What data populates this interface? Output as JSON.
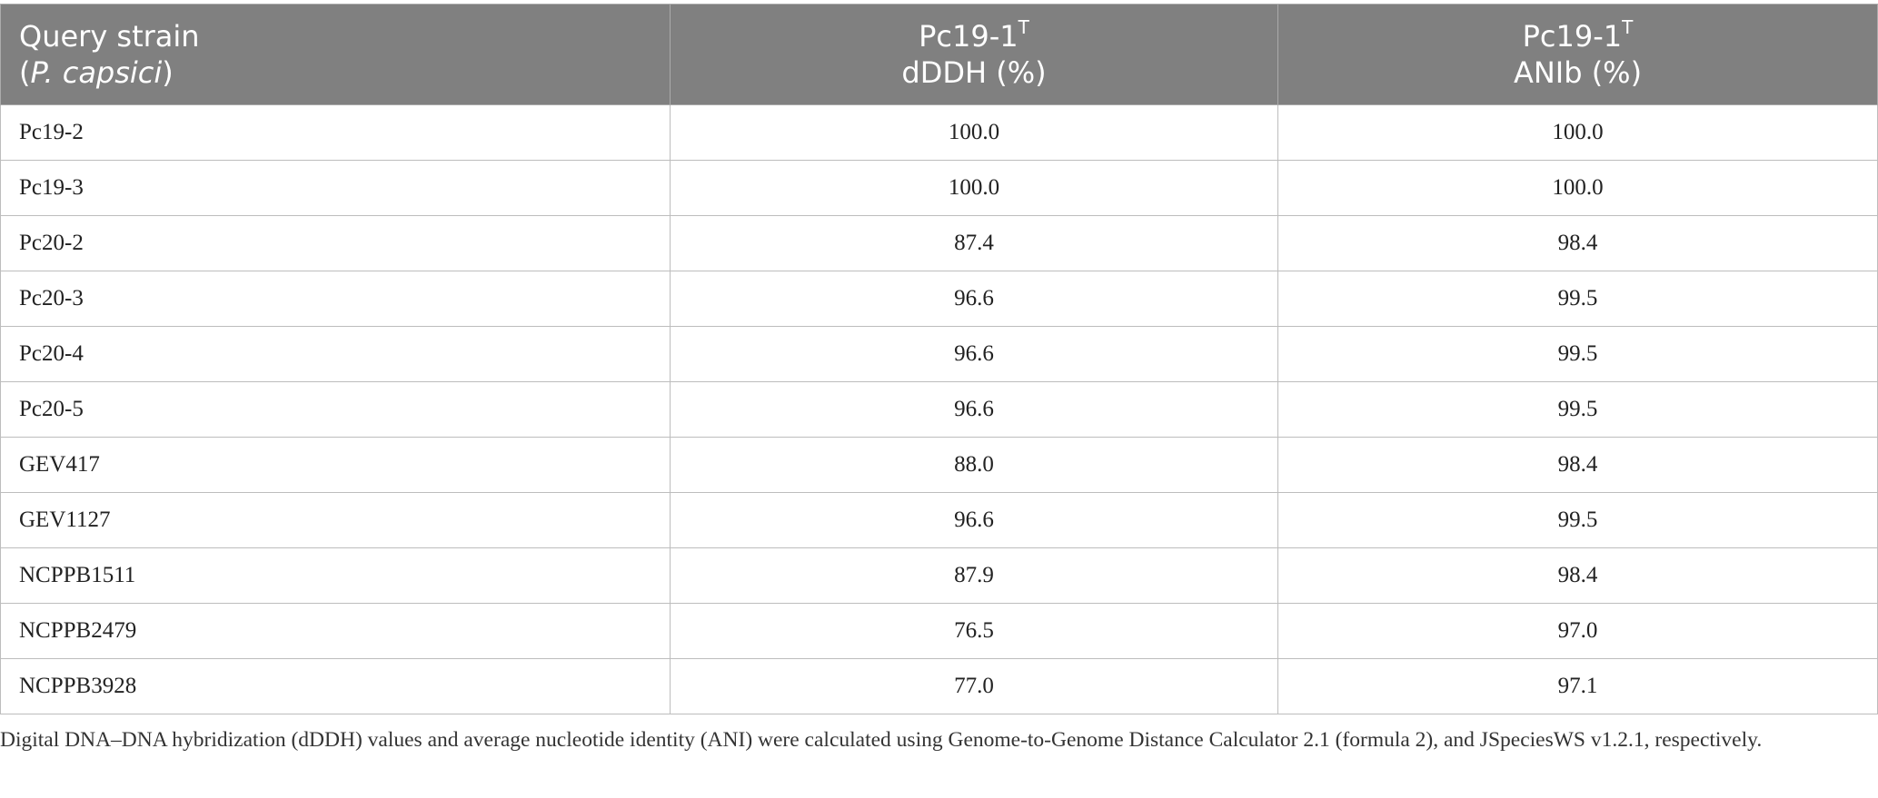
{
  "table": {
    "header": {
      "col1": {
        "line1": "Query strain",
        "line2_open": "(",
        "line2_italic": "P. capsici",
        "line2_close": ")"
      },
      "col2": {
        "strain": "Pc19-1",
        "superscript": "T",
        "metric": "dDDH (%)"
      },
      "col3": {
        "strain": "Pc19-1",
        "superscript": "T",
        "metric": "ANIb (%)"
      }
    },
    "rows": [
      {
        "strain": "Pc19-2",
        "dddh": "100.0",
        "anib": "100.0"
      },
      {
        "strain": "Pc19-3",
        "dddh": "100.0",
        "anib": "100.0"
      },
      {
        "strain": "Pc20-2",
        "dddh": "87.4",
        "anib": "98.4"
      },
      {
        "strain": "Pc20-3",
        "dddh": "96.6",
        "anib": "99.5"
      },
      {
        "strain": "Pc20-4",
        "dddh": "96.6",
        "anib": "99.5"
      },
      {
        "strain": "Pc20-5",
        "dddh": "96.6",
        "anib": "99.5"
      },
      {
        "strain": "GEV417",
        "dddh": "88.0",
        "anib": "98.4"
      },
      {
        "strain": "GEV1127",
        "dddh": "96.6",
        "anib": "99.5"
      },
      {
        "strain": "NCPPB1511",
        "dddh": "87.9",
        "anib": "98.4"
      },
      {
        "strain": "NCPPB2479",
        "dddh": "76.5",
        "anib": "97.0"
      },
      {
        "strain": "NCPPB3928",
        "dddh": "77.0",
        "anib": "97.1"
      }
    ]
  },
  "footnote": "Digital DNA–DNA hybridization (dDDH) values and average nucleotide identity (ANI) were calculated using Genome-to-Genome Distance Calculator 2.1 (formula 2), and JSpeciesWS v1.2.1, respectively."
}
